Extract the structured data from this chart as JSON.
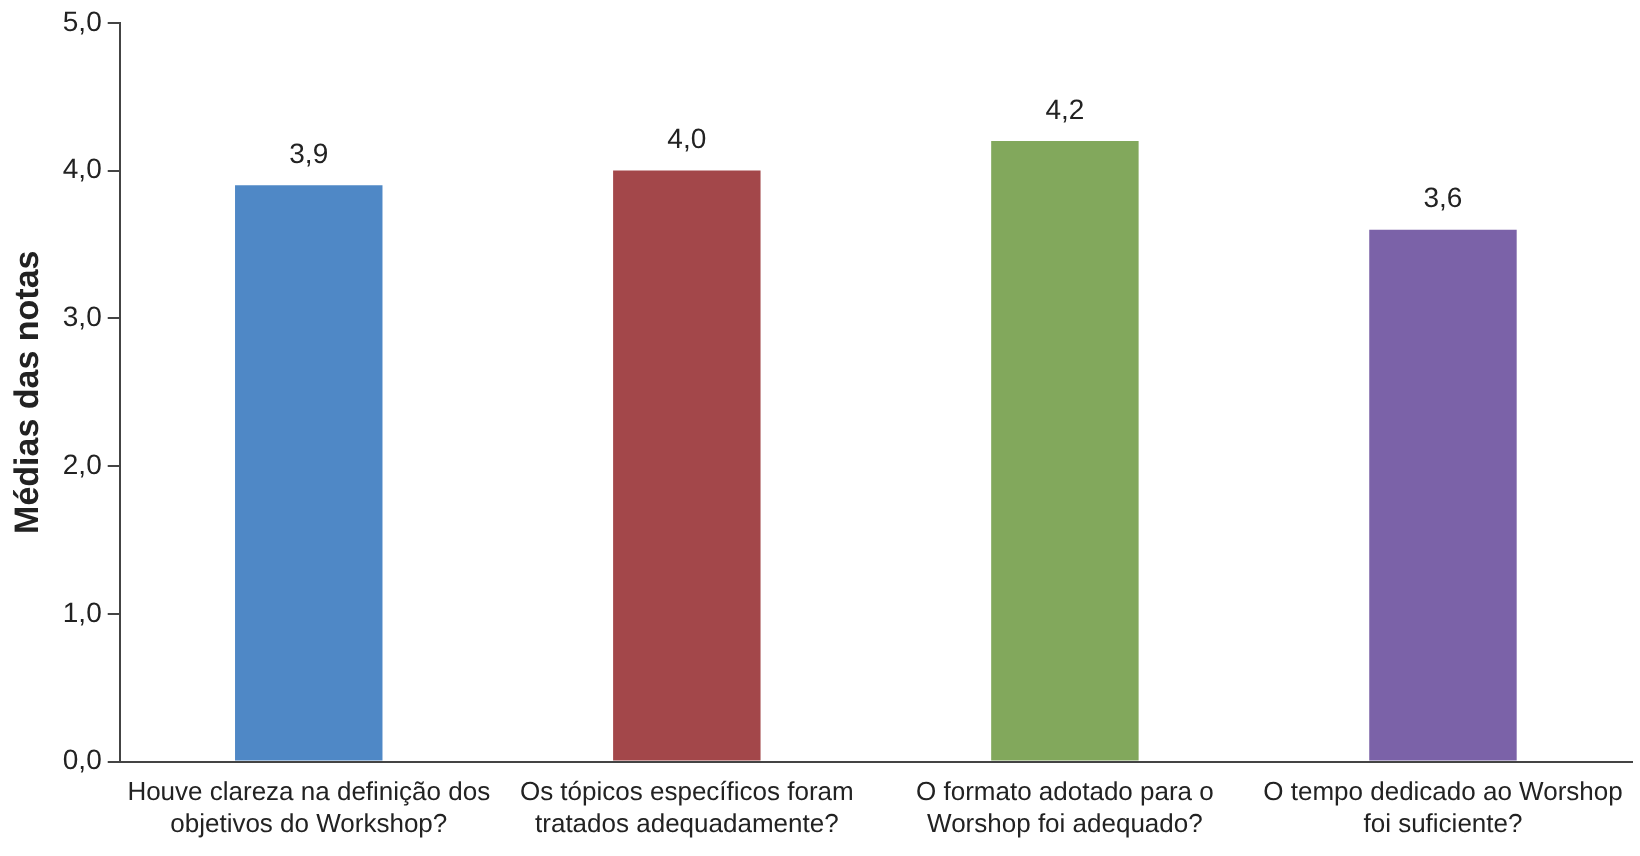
{
  "chart_data": {
    "type": "bar",
    "ylabel": "Médias das notas",
    "categories": [
      "Houve clareza na definição dos objetivos do Workshop?",
      "Os tópicos específicos foram tratados adequadamente?",
      "O formato adotado para o Worshop foi adequado?",
      "O tempo dedicado ao Worshop foi suficiente?"
    ],
    "values": [
      3.9,
      4.0,
      4.2,
      3.6
    ],
    "colors": [
      "#4f88c6",
      "#a3474a",
      "#82a85c",
      "#7b62a8"
    ],
    "value_labels": [
      "3,9",
      "4,0",
      "4,2",
      "3,6"
    ],
    "ylim": [
      0,
      5
    ],
    "yticks": [
      {
        "value": 0,
        "label": "0,0"
      },
      {
        "value": 1,
        "label": "1,0"
      },
      {
        "value": 2,
        "label": "2,0"
      },
      {
        "value": 3,
        "label": "3,0"
      },
      {
        "value": 4,
        "label": "4,0"
      },
      {
        "value": 5,
        "label": "5,0"
      }
    ],
    "grid": false,
    "legend": false
  }
}
